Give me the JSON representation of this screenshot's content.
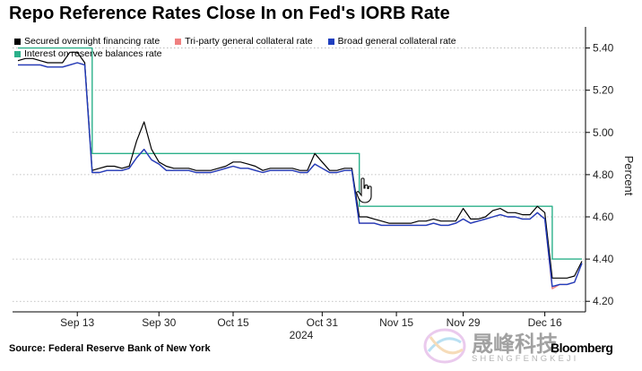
{
  "title": "Repo Reference Rates Close In on Fed's IORB Rate",
  "source": "Source: Federal Reserve Bank of New York",
  "brand": "Bloomberg",
  "watermark": {
    "chinese": "晟峰科技",
    "latin": "SHENGFENGKEJI"
  },
  "colors": {
    "sofr": "#000000",
    "tgcr": "#f08080",
    "bgcr": "#1f3fbf",
    "iorb": "#2bb08a"
  },
  "chart_data": {
    "type": "line",
    "title": "Repo Reference Rates Close In on Fed's IORB Rate",
    "xlabel": "",
    "ylabel": "Percent",
    "year_label": "2024",
    "x_ticks": [
      "Sep 13",
      "Sep 30",
      "Oct 15",
      "Oct 31",
      "Nov 15",
      "Nov 29",
      "Dec 16"
    ],
    "ylim": [
      4.15,
      5.5
    ],
    "y_ticks": [
      "4.20",
      "4.40",
      "4.60",
      "4.80",
      "5.00",
      "5.20",
      "5.40"
    ],
    "y_axis_side": "right",
    "grid": "horizontal dotted",
    "legend_position": "top-left",
    "x": [
      "Sep 3",
      "Sep 4",
      "Sep 5",
      "Sep 6",
      "Sep 9",
      "Sep 10",
      "Sep 11",
      "Sep 12",
      "Sep 13",
      "Sep 16",
      "Sep 17",
      "Sep 18",
      "Sep 19",
      "Sep 20",
      "Sep 23",
      "Sep 24",
      "Sep 25",
      "Sep 26",
      "Sep 27",
      "Sep 30",
      "Oct 1",
      "Oct 2",
      "Oct 3",
      "Oct 4",
      "Oct 7",
      "Oct 8",
      "Oct 9",
      "Oct 10",
      "Oct 11",
      "Oct 15",
      "Oct 16",
      "Oct 17",
      "Oct 18",
      "Oct 21",
      "Oct 22",
      "Oct 23",
      "Oct 24",
      "Oct 25",
      "Oct 28",
      "Oct 29",
      "Oct 30",
      "Oct 31",
      "Nov 1",
      "Nov 4",
      "Nov 5",
      "Nov 6",
      "Nov 7",
      "Nov 8",
      "Nov 12",
      "Nov 13",
      "Nov 14",
      "Nov 15",
      "Nov 18",
      "Nov 19",
      "Nov 20",
      "Nov 21",
      "Nov 22",
      "Nov 25",
      "Nov 26",
      "Nov 27",
      "Nov 29",
      "Dec 2",
      "Dec 3",
      "Dec 4",
      "Dec 5",
      "Dec 6",
      "Dec 9",
      "Dec 10",
      "Dec 11",
      "Dec 12",
      "Dec 13",
      "Dec 16",
      "Dec 17",
      "Dec 18",
      "Dec 19",
      "Dec 20",
      "Dec 23"
    ],
    "series": [
      {
        "name": "Secured overnight financing rate",
        "key": "sofr",
        "values": [
          5.34,
          5.35,
          5.35,
          5.34,
          5.33,
          5.33,
          5.33,
          5.38,
          5.38,
          5.33,
          4.82,
          4.83,
          4.84,
          4.84,
          4.83,
          4.84,
          4.96,
          5.05,
          4.92,
          4.86,
          4.84,
          4.83,
          4.83,
          4.83,
          4.82,
          4.82,
          4.82,
          4.83,
          4.84,
          4.86,
          4.86,
          4.85,
          4.84,
          4.82,
          4.83,
          4.83,
          4.83,
          4.83,
          4.82,
          4.82,
          4.9,
          4.86,
          4.82,
          4.82,
          4.83,
          4.83,
          4.6,
          4.6,
          4.59,
          4.58,
          4.57,
          4.57,
          4.57,
          4.57,
          4.58,
          4.58,
          4.59,
          4.58,
          4.58,
          4.58,
          4.64,
          4.59,
          4.59,
          4.6,
          4.63,
          4.64,
          4.62,
          4.62,
          4.61,
          4.61,
          4.65,
          4.62,
          4.31,
          4.31,
          4.31,
          4.32,
          4.39
        ]
      },
      {
        "name": "Tri-party general collateral rate",
        "key": "tgcr",
        "values": [
          5.32,
          5.32,
          5.32,
          5.32,
          5.31,
          5.31,
          5.31,
          5.32,
          5.33,
          5.32,
          4.81,
          4.81,
          4.82,
          4.82,
          4.82,
          4.83,
          4.88,
          4.92,
          4.87,
          4.85,
          4.82,
          4.82,
          4.82,
          4.82,
          4.81,
          4.81,
          4.81,
          4.82,
          4.83,
          4.84,
          4.83,
          4.83,
          4.82,
          4.81,
          4.82,
          4.82,
          4.82,
          4.82,
          4.81,
          4.81,
          4.85,
          4.83,
          4.81,
          4.81,
          4.82,
          4.82,
          4.57,
          4.57,
          4.57,
          4.56,
          4.56,
          4.56,
          4.56,
          4.56,
          4.56,
          4.56,
          4.57,
          4.56,
          4.56,
          4.57,
          4.59,
          4.57,
          4.58,
          4.59,
          4.6,
          4.61,
          4.6,
          4.6,
          4.59,
          4.59,
          4.62,
          4.59,
          4.26,
          4.28,
          4.28,
          4.29,
          4.38
        ]
      },
      {
        "name": "Broad general collateral rate",
        "key": "bgcr",
        "values": [
          5.32,
          5.32,
          5.32,
          5.32,
          5.31,
          5.31,
          5.31,
          5.32,
          5.33,
          5.32,
          4.81,
          4.81,
          4.82,
          4.82,
          4.82,
          4.83,
          4.88,
          4.92,
          4.87,
          4.85,
          4.82,
          4.82,
          4.82,
          4.82,
          4.81,
          4.81,
          4.81,
          4.82,
          4.83,
          4.84,
          4.83,
          4.83,
          4.82,
          4.81,
          4.82,
          4.82,
          4.82,
          4.82,
          4.81,
          4.81,
          4.85,
          4.83,
          4.81,
          4.81,
          4.82,
          4.82,
          4.57,
          4.57,
          4.57,
          4.56,
          4.56,
          4.56,
          4.56,
          4.56,
          4.56,
          4.56,
          4.57,
          4.56,
          4.56,
          4.57,
          4.59,
          4.57,
          4.58,
          4.59,
          4.6,
          4.61,
          4.6,
          4.6,
          4.59,
          4.59,
          4.62,
          4.59,
          4.27,
          4.28,
          4.28,
          4.29,
          4.38
        ]
      },
      {
        "name": "Interest on reserve balances rate",
        "key": "iorb",
        "values": [
          5.4,
          5.4,
          5.4,
          5.4,
          5.4,
          5.4,
          5.4,
          5.4,
          5.4,
          5.4,
          4.9,
          4.9,
          4.9,
          4.9,
          4.9,
          4.9,
          4.9,
          4.9,
          4.9,
          4.9,
          4.9,
          4.9,
          4.9,
          4.9,
          4.9,
          4.9,
          4.9,
          4.9,
          4.9,
          4.9,
          4.9,
          4.9,
          4.9,
          4.9,
          4.9,
          4.9,
          4.9,
          4.9,
          4.9,
          4.9,
          4.9,
          4.9,
          4.9,
          4.9,
          4.9,
          4.9,
          4.65,
          4.65,
          4.65,
          4.65,
          4.65,
          4.65,
          4.65,
          4.65,
          4.65,
          4.65,
          4.65,
          4.65,
          4.65,
          4.65,
          4.65,
          4.65,
          4.65,
          4.65,
          4.65,
          4.65,
          4.65,
          4.65,
          4.65,
          4.65,
          4.65,
          4.65,
          4.4,
          4.4,
          4.4,
          4.4,
          4.4
        ]
      }
    ]
  }
}
